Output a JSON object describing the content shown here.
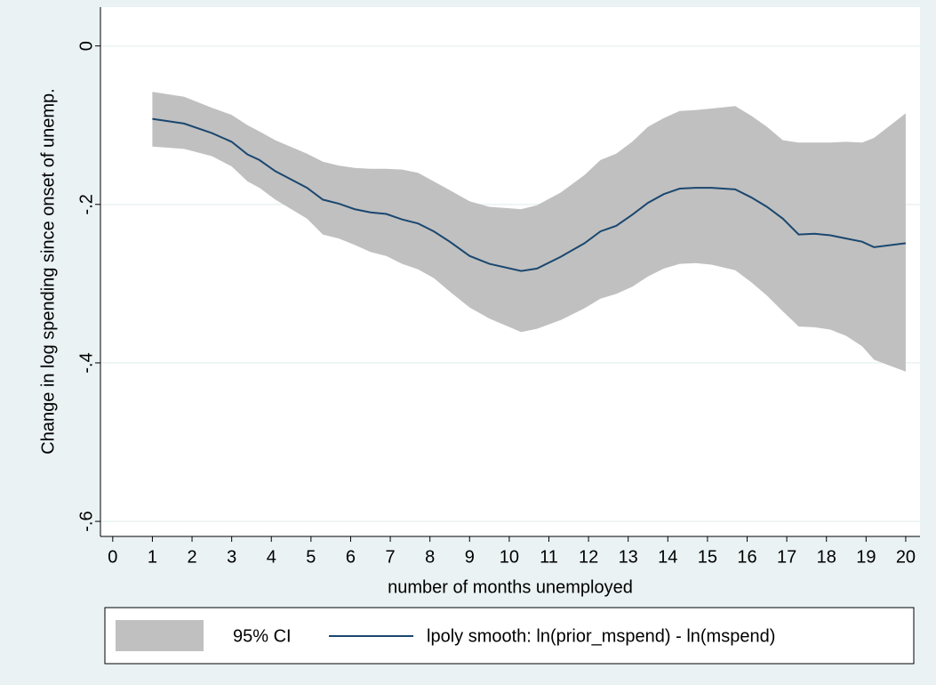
{
  "chart_data": {
    "type": "line",
    "x_label": "number of months unemployed",
    "y_label": "Change in log spending since onset of unemp.",
    "x": [
      1,
      1.8,
      2.5,
      3,
      3.4,
      3.7,
      4.1,
      4.9,
      5.3,
      5.7,
      6.1,
      6.5,
      6.9,
      7.3,
      7.7,
      8.1,
      8.5,
      9,
      9.5,
      10.3,
      10.7,
      11.3,
      11.9,
      12.3,
      12.7,
      13.1,
      13.5,
      13.9,
      14.3,
      14.7,
      15.1,
      15.7,
      16.1,
      16.5,
      16.9,
      17.3,
      17.7,
      18.1,
      18.5,
      18.9,
      19.2,
      20
    ],
    "series": [
      {
        "name": "95% CI",
        "color": "#c0c0c0",
        "upper": [
          -0.058,
          -0.064,
          -0.078,
          -0.087,
          -0.1,
          -0.108,
          -0.119,
          -0.136,
          -0.146,
          -0.151,
          -0.154,
          -0.155,
          -0.155,
          -0.156,
          -0.16,
          -0.171,
          -0.182,
          -0.196,
          -0.203,
          -0.206,
          -0.201,
          -0.185,
          -0.163,
          -0.144,
          -0.136,
          -0.121,
          -0.102,
          -0.091,
          -0.082,
          -0.081,
          -0.079,
          -0.076,
          -0.088,
          -0.102,
          -0.119,
          -0.122,
          -0.122,
          -0.122,
          -0.121,
          -0.122,
          -0.116,
          -0.085
        ],
        "lower": [
          -0.127,
          -0.13,
          -0.139,
          -0.152,
          -0.171,
          -0.179,
          -0.194,
          -0.218,
          -0.238,
          -0.243,
          -0.251,
          -0.26,
          -0.265,
          -0.275,
          -0.282,
          -0.293,
          -0.31,
          -0.33,
          -0.344,
          -0.361,
          -0.357,
          -0.346,
          -0.331,
          -0.319,
          -0.313,
          -0.304,
          -0.291,
          -0.281,
          -0.275,
          -0.274,
          -0.276,
          -0.283,
          -0.298,
          -0.315,
          -0.335,
          -0.354,
          -0.355,
          -0.358,
          -0.366,
          -0.379,
          -0.396,
          -0.411
        ]
      },
      {
        "name": "lpoly smooth: ln(prior_mspend) - ln(mspend)",
        "color": "#1a476f",
        "values": [
          -0.092,
          -0.098,
          -0.11,
          -0.121,
          -0.137,
          -0.144,
          -0.158,
          -0.179,
          -0.194,
          -0.199,
          -0.206,
          -0.21,
          -0.212,
          -0.219,
          -0.224,
          -0.234,
          -0.247,
          -0.265,
          -0.275,
          -0.284,
          -0.281,
          -0.266,
          -0.249,
          -0.234,
          -0.227,
          -0.213,
          -0.198,
          -0.187,
          -0.18,
          -0.179,
          -0.179,
          -0.181,
          -0.191,
          -0.203,
          -0.218,
          -0.238,
          -0.237,
          -0.239,
          -0.243,
          -0.247,
          -0.254,
          -0.249
        ]
      }
    ],
    "xlim": [
      -0.31,
      20.36
    ],
    "ylim": [
      -0.619,
      0.049
    ],
    "xticks": [
      0,
      1,
      2,
      3,
      4,
      5,
      6,
      7,
      8,
      9,
      10,
      11,
      12,
      13,
      14,
      15,
      16,
      17,
      18,
      19,
      20
    ],
    "yticks": [
      {
        "value": -0.6,
        "label": "-.6"
      },
      {
        "value": -0.4,
        "label": "-.4"
      },
      {
        "value": -0.2,
        "label": "-.2"
      },
      0
    ],
    "grid": true
  }
}
